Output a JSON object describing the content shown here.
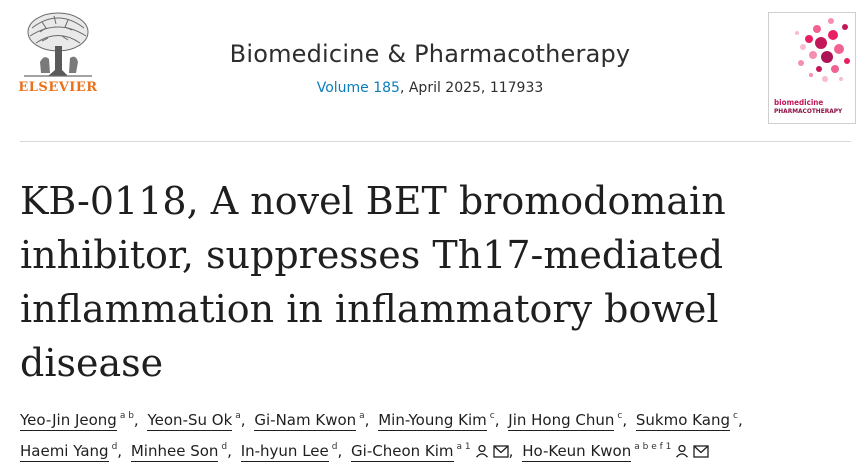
{
  "publisher": {
    "name": "ELSEVIER",
    "logo_icon": "elsevier-tree-icon"
  },
  "journal": {
    "title": "Biomedicine & Pharmacotherapy",
    "volume_label": "Volume 185",
    "issue_rest": ", April 2025, 117933",
    "cover_title_line1": "biomedicine",
    "cover_title_line2": "PHARMACOTHERAPY"
  },
  "article": {
    "title_lines": [
      "KB-0118, A novel BET bromodomain",
      "inhibitor, suppresses Th17-mediated",
      "inflammation in inflammatory bowel",
      "disease"
    ]
  },
  "authors": [
    {
      "name": "Yeo-Jin Jeong",
      "aff": "a b",
      "sep": ",",
      "icons": []
    },
    {
      "name": "Yeon-Su Ok",
      "aff": "a",
      "sep": ",",
      "icons": []
    },
    {
      "name": "Gi-Nam Kwon",
      "aff": "a",
      "sep": ",",
      "icons": []
    },
    {
      "name": "Min-Young Kim",
      "aff": "c",
      "sep": ",",
      "icons": []
    },
    {
      "name": "Jin Hong Chun",
      "aff": "c",
      "sep": ",",
      "icons": []
    },
    {
      "name": "Sukmo Kang",
      "aff": "c",
      "sep": ",",
      "icons": []
    },
    {
      "name": "Haemi Yang",
      "aff": "d",
      "sep": ",",
      "icons": []
    },
    {
      "name": "Minhee Son",
      "aff": "d",
      "sep": ",",
      "icons": []
    },
    {
      "name": "In-hyun Lee",
      "aff": "d",
      "sep": ",",
      "icons": []
    },
    {
      "name": "Gi-Cheon Kim",
      "aff": "a 1",
      "sep": ",",
      "icons": [
        "person-icon",
        "email-icon"
      ]
    },
    {
      "name": "Ho-Keun Kwon",
      "aff": "a b e f 1",
      "sep": "",
      "icons": [
        "person-icon",
        "email-icon"
      ]
    }
  ],
  "colors": {
    "publisher_orange": "#e9711c",
    "link_blue": "#0c7dbb",
    "text": "#1f1f1f"
  }
}
